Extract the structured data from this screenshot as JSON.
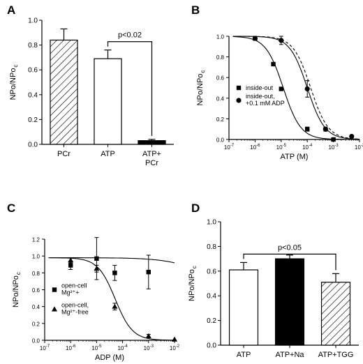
{
  "chart_data": [
    {
      "panel": "A",
      "type": "bar",
      "ylabel": "NPo/NPo",
      "ylabel_sub": "c",
      "ylim": [
        0,
        1.0
      ],
      "yticks": [
        "0.0",
        "0.2",
        "0.4",
        "0.6",
        "0.8",
        "1.0"
      ],
      "categories": [
        "PCr",
        "ATP",
        "ATP+ PCr"
      ],
      "category_lines": [
        [
          "PCr"
        ],
        [
          "ATP"
        ],
        [
          "ATP+",
          "PCr"
        ]
      ],
      "values": [
        0.84,
        0.69,
        0.03
      ],
      "errors": [
        0.09,
        0.07,
        0.01
      ],
      "fills": [
        "hatch",
        "white",
        "black"
      ],
      "annotations": [
        {
          "text": "p<0.02",
          "between": [
            1,
            2
          ]
        }
      ]
    },
    {
      "panel": "B",
      "type": "scatter",
      "xlabel": "ATP (M)",
      "ylabel": "NPo/NPo",
      "ylabel_sub": "c",
      "xscale": "log",
      "xlim": [
        1e-07,
        0.01
      ],
      "ylim": [
        0,
        1.0
      ],
      "yticks": [
        "0.0",
        "0.2",
        "0.4",
        "0.6",
        "0.8",
        "1.0"
      ],
      "legend_position": "center-left",
      "series": [
        {
          "name": "inside-out",
          "marker": "square",
          "x": [
            1e-06,
            5e-06,
            1e-05,
            0.0001,
            0.001
          ],
          "y": [
            0.98,
            0.73,
            0.49,
            0.1,
            0.0
          ],
          "err": [
            0,
            0,
            0,
            0.02,
            0
          ]
        },
        {
          "name": "inside-out, +0.1 mM ADP",
          "name_lines": [
            "inside-out,",
            "+0.1 mM ADP"
          ],
          "marker": "circle",
          "x": [
            1e-06,
            1e-05,
            0.0001,
            0.0005,
            0.005
          ],
          "y": [
            0.98,
            0.96,
            0.49,
            0.1,
            0.03
          ],
          "err": [
            0.02,
            0.04,
            0.08,
            0.02,
            0
          ]
        }
      ],
      "fits": [
        {
          "ic50": 1.2e-05,
          "hill": 1.3,
          "style": "solid"
        },
        {
          "ic50": 0.0001,
          "hill": 1.3,
          "style": "solid"
        },
        {
          "ic50": 0.000135,
          "hill": 1.3,
          "style": "dashed"
        }
      ]
    },
    {
      "panel": "C",
      "type": "scatter",
      "xlabel": "ADP (M)",
      "ylabel": "NPo/NPo",
      "ylabel_sub": "c",
      "xscale": "log",
      "xlim": [
        1e-07,
        0.01
      ],
      "ylim": [
        0,
        1.2
      ],
      "yticks": [
        "0.0",
        "0.2",
        "0.4",
        "0.6",
        "0.8",
        "1.0",
        "1.2"
      ],
      "legend_position": "center-left",
      "series": [
        {
          "name": "open-cell Mg2+ +",
          "name_lines": [
            "open-cell",
            "Mg²⁺+"
          ],
          "marker": "square",
          "x": [
            1e-06,
            1e-05,
            5e-05,
            0.001
          ],
          "y": [
            0.89,
            0.97,
            0.8,
            0.81
          ],
          "err": [
            0.05,
            0.25,
            0.09,
            0.2
          ]
        },
        {
          "name": "open-cell, Mg2+ -free",
          "name_lines": [
            "open-cell,",
            "Mg²⁺-free"
          ],
          "marker": "triangle",
          "x": [
            1e-06,
            1e-05,
            5e-05,
            0.001,
            0.01
          ],
          "y": [
            0.95,
            0.85,
            0.4,
            0.05,
            0.01
          ],
          "err": [
            0.03,
            0.04,
            0.04,
            0.02,
            0
          ]
        }
      ],
      "fits": [
        {
          "start": 0.98,
          "end": 0.68,
          "ic50": 0.1,
          "hill": 0.6,
          "style": "solid"
        },
        {
          "start": 0.98,
          "end": 0.0,
          "ic50": 5.2e-05,
          "hill": 1.3,
          "style": "solid"
        }
      ]
    },
    {
      "panel": "D",
      "type": "bar",
      "ylabel": "NPo/NPo",
      "ylabel_sub": "c",
      "ylim": [
        0,
        1.0
      ],
      "yticks": [
        "0.0",
        "0.2",
        "0.4",
        "0.6",
        "0.8",
        "1.0"
      ],
      "categories": [
        "ATP",
        "ATP+Na",
        "ATP+TGG"
      ],
      "category_lines": [
        [
          "ATP"
        ],
        [
          "ATP+Na"
        ],
        [
          "ATP+TGG"
        ]
      ],
      "values": [
        0.61,
        0.7,
        0.51
      ],
      "errors": [
        0.06,
        0.03,
        0.07
      ],
      "fills": [
        "white",
        "black",
        "hatch"
      ],
      "annotations": [
        {
          "text": "p<0.05",
          "between": [
            0,
            2
          ]
        }
      ]
    }
  ]
}
